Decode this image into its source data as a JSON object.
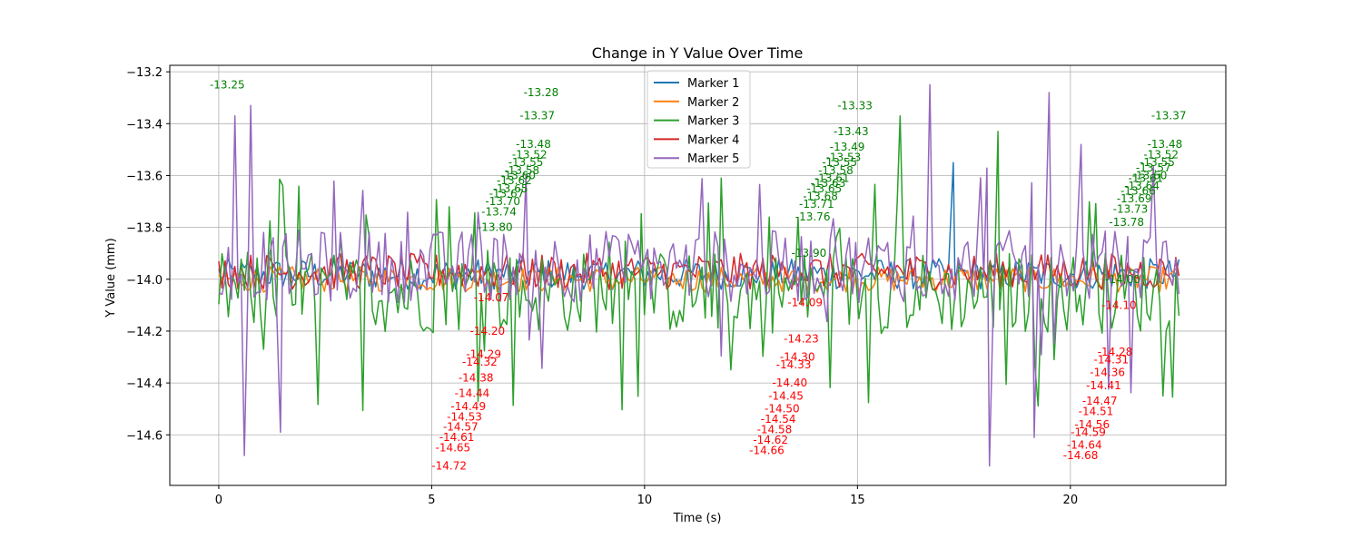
{
  "chart_data": {
    "type": "line",
    "title": "Change in Y Value Over Time",
    "xlabel": "Time (s)",
    "ylabel": "Y Value (mm)",
    "xlim": [
      -1.15,
      23.65
    ],
    "ylim": [
      -14.795,
      -13.175
    ],
    "xticks": [
      0,
      5,
      10,
      15,
      20
    ],
    "yticks": [
      -14.6,
      -14.4,
      -14.2,
      -14.0,
      -13.8,
      -13.6,
      -13.4,
      -13.2
    ],
    "grid": true,
    "legend_position": "top-center",
    "colors": [
      "#1f77b4",
      "#ff7f0e",
      "#2ca02c",
      "#d62728",
      "#9467bd"
    ],
    "label_colors": {
      "upper": "#008000",
      "lower": "#ff0000"
    },
    "series": [
      {
        "name": "Marker 1"
      },
      {
        "name": "Marker 2"
      },
      {
        "name": "Marker 3"
      },
      {
        "name": "Marker 4"
      },
      {
        "name": "Marker 5"
      }
    ],
    "key_points": [
      {
        "series": "Marker 5",
        "x": 0.38,
        "y": -13.37
      },
      {
        "series": "Marker 5",
        "x": 0.75,
        "y": -13.33
      },
      {
        "series": "Marker 5",
        "x": 0.6,
        "y": -14.68
      },
      {
        "series": "Marker 5",
        "x": 1.45,
        "y": -14.59
      },
      {
        "series": "Marker 5",
        "x": 16.7,
        "y": -13.25
      },
      {
        "series": "Marker 5",
        "x": 19.5,
        "y": -13.28
      },
      {
        "series": "Marker 5",
        "x": 20.25,
        "y": -13.48
      },
      {
        "series": "Marker 5",
        "x": 18.1,
        "y": -14.72
      },
      {
        "series": "Marker 5",
        "x": 19.15,
        "y": -14.61
      },
      {
        "series": "Marker 1",
        "x": 17.25,
        "y": -13.55
      },
      {
        "series": "Marker 3",
        "x": 16.0,
        "y": -13.37
      },
      {
        "series": "Marker 3",
        "x": 18.3,
        "y": -13.43
      }
    ],
    "annotations": [
      "-13.25",
      "-13.28",
      "-13.33",
      "-13.37",
      "-13.37",
      "-13.43",
      "-13.48",
      "-13.48",
      "-13.49",
      "-13.52",
      "-13.52",
      "-13.53",
      "-13.55",
      "-13.55",
      "-13.55",
      "-13.57",
      "-13.58",
      "-13.58",
      "-13.60",
      "-13.60",
      "-13.61",
      "-13.61",
      "-13.62",
      "-13.63",
      "-13.64",
      "-13.65",
      "-13.65",
      "-13.66",
      "-13.67",
      "-13.68",
      "-13.69",
      "-13.70",
      "-13.71",
      "-13.73",
      "-13.74",
      "-13.76",
      "-13.78",
      "-13.80",
      "-13.90",
      "-14.00",
      "-14.07",
      "-14.09",
      "-14.10",
      "-14.20",
      "-14.23",
      "-14.28",
      "-14.29",
      "-14.30",
      "-14.31",
      "-14.32",
      "-14.33",
      "-14.36",
      "-14.38",
      "-14.40",
      "-14.41",
      "-14.44",
      "-14.45",
      "-14.47",
      "-14.49",
      "-14.50",
      "-14.51",
      "-14.53",
      "-14.54",
      "-14.56",
      "-14.57",
      "-14.58",
      "-14.59",
      "-14.61",
      "-14.62",
      "-14.64",
      "-14.65",
      "-14.66",
      "-14.68",
      "-14.72"
    ]
  }
}
